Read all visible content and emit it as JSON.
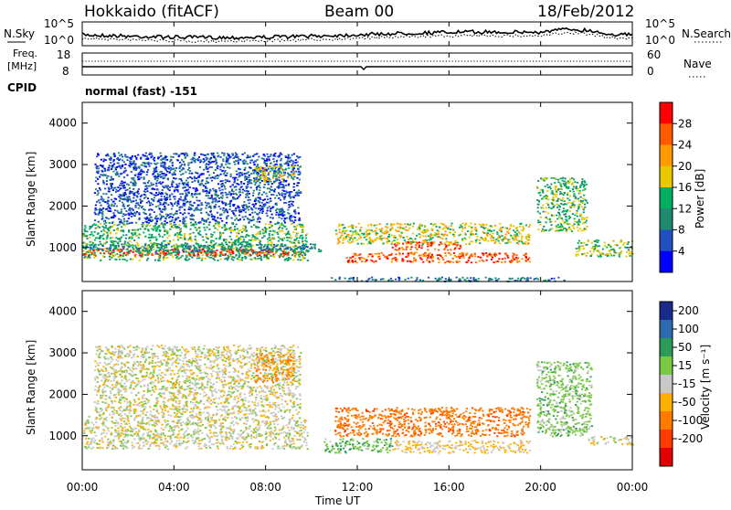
{
  "header": {
    "station": "Hokkaido (fitACF)",
    "beam": "Beam 00",
    "date": "18/Feb/2012"
  },
  "noise_panel": {
    "left_label": "N.Sky",
    "right_label": "N.Search",
    "left_ticks": [
      "10^5",
      "10^0"
    ],
    "right_ticks": [
      "10^5",
      "10^0"
    ]
  },
  "freq_panel": {
    "left_label_1": "Freq.",
    "left_label_2": "[MHz]",
    "right_label": "Nave",
    "left_ticks": [
      "18",
      "8"
    ],
    "right_ticks": [
      "60",
      "0"
    ]
  },
  "cpid": {
    "label": "CPID",
    "value": "normal (fast) -151"
  },
  "power_panel": {
    "ylabel": "Slant Range [km]",
    "colorbar_label": "Power [dB]",
    "colorbar_ticks": [
      "28",
      "24",
      "20",
      "16",
      "12",
      "8",
      "4"
    ],
    "colorbar_colors": [
      "#ff0000",
      "#ff5a00",
      "#ff9a00",
      "#e8c800",
      "#00b060",
      "#1f8a70",
      "#2050c0",
      "#0000ff"
    ]
  },
  "velocity_panel": {
    "ylabel": "Slant Range [km]",
    "colorbar_label": "Velocity [m s⁻¹]",
    "colorbar_ticks": [
      "200",
      "100",
      "50",
      "15",
      "-15",
      "-50",
      "-100",
      "-200"
    ],
    "colorbar_colors": [
      "#1a2a8a",
      "#2d6ab0",
      "#2e9a5a",
      "#7ac943",
      "#c8c8c8",
      "#ffb000",
      "#ff7a00",
      "#ff3a00",
      "#e00000"
    ]
  },
  "x_axis": {
    "title": "Time UT",
    "ticks": [
      "00:00",
      "04:00",
      "08:00",
      "12:00",
      "16:00",
      "20:00",
      "00:00"
    ]
  },
  "chart_data": [
    {
      "type": "line",
      "title": "",
      "series": [
        {
          "name": "N.Sky",
          "values": []
        },
        {
          "name": "N.Search",
          "values": []
        }
      ],
      "ylim": [
        "10^0",
        "10^5"
      ],
      "xlim": [
        "00:00",
        "24:00"
      ]
    },
    {
      "type": "line",
      "title": "",
      "series": [
        {
          "name": "Freq. [MHz]",
          "values": []
        },
        {
          "name": "Nave",
          "values": []
        }
      ],
      "ylim_left": [
        8,
        18
      ],
      "ylim_right": [
        0,
        60
      ],
      "xlim": [
        "00:00",
        "24:00"
      ]
    },
    {
      "type": "heatmap",
      "quantity": "Power [dB]",
      "ylabel": "Slant Range [km]",
      "ylim": [
        180,
        4500
      ],
      "y_ticks": [
        1000,
        2000,
        3000,
        4000
      ],
      "xlim_hours": [
        0,
        24
      ],
      "x_ticks": [
        "00:00",
        "04:00",
        "08:00",
        "12:00",
        "16:00",
        "20:00",
        "00:00"
      ],
      "colorbar_range": [
        0,
        32
      ],
      "regions": [
        {
          "t0": 0.0,
          "t1": 9.8,
          "r0": 700,
          "r1": 1600,
          "level": 14
        },
        {
          "t0": 0.0,
          "t1": 9.5,
          "r0": 820,
          "r1": 980,
          "level": 28
        },
        {
          "t0": 0.0,
          "t1": 10.5,
          "r0": 900,
          "r1": 1100,
          "level": 10
        },
        {
          "t0": 0.5,
          "t1": 9.5,
          "r0": 1600,
          "r1": 3300,
          "level": 6
        },
        {
          "t0": 7.5,
          "t1": 9.2,
          "r0": 2600,
          "r1": 3000,
          "level": 18
        },
        {
          "t0": 11.0,
          "t1": 19.5,
          "r0": 1100,
          "r1": 1600,
          "level": 18
        },
        {
          "t0": 11.5,
          "t1": 19.5,
          "r0": 650,
          "r1": 900,
          "level": 26
        },
        {
          "t0": 13.5,
          "t1": 16.5,
          "r0": 950,
          "r1": 1150,
          "level": 27
        },
        {
          "t0": 10.8,
          "t1": 21.0,
          "r0": 200,
          "r1": 300,
          "level": 8
        },
        {
          "t0": 19.8,
          "t1": 22.0,
          "r0": 1400,
          "r1": 2700,
          "level": 14
        },
        {
          "t0": 21.5,
          "t1": 24.0,
          "r0": 800,
          "r1": 1200,
          "level": 16
        }
      ]
    },
    {
      "type": "heatmap",
      "quantity": "Velocity [m s⁻¹]",
      "ylabel": "Slant Range [km]",
      "ylim": [
        180,
        4500
      ],
      "y_ticks": [
        1000,
        2000,
        3000,
        4000
      ],
      "xlim_hours": [
        0,
        24
      ],
      "x_ticks": [
        "00:00",
        "04:00",
        "08:00",
        "12:00",
        "16:00",
        "20:00",
        "00:00"
      ],
      "colorbar_range": [
        -200,
        200
      ],
      "regions": [
        {
          "t0": 0.0,
          "t1": 9.8,
          "r0": 700,
          "r1": 1500,
          "level": 0
        },
        {
          "t0": 0.5,
          "t1": 9.5,
          "r0": 1500,
          "r1": 3200,
          "level": 0
        },
        {
          "t0": 7.5,
          "t1": 9.2,
          "r0": 2300,
          "r1": 3000,
          "level": -60
        },
        {
          "t0": 11.0,
          "t1": 19.5,
          "r0": 1000,
          "r1": 1700,
          "level": -80
        },
        {
          "t0": 10.5,
          "t1": 13.5,
          "r0": 600,
          "r1": 950,
          "level": 40
        },
        {
          "t0": 13.5,
          "t1": 19.5,
          "r0": 600,
          "r1": 900,
          "level": -20
        },
        {
          "t0": 19.8,
          "t1": 22.2,
          "r0": 1000,
          "r1": 2800,
          "level": 30
        },
        {
          "t0": 22.0,
          "t1": 24.0,
          "r0": 800,
          "r1": 1000,
          "level": 0
        }
      ]
    }
  ]
}
